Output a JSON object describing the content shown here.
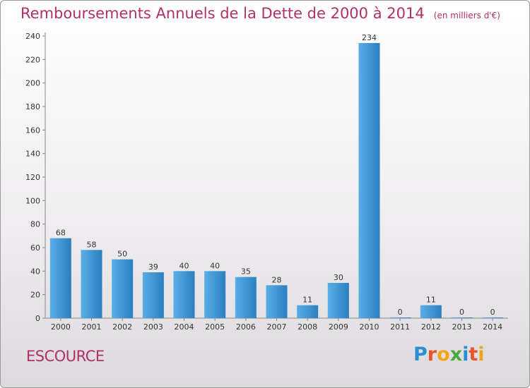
{
  "header": {
    "title": "Remboursements Annuels de la Dette de 2000 à 2014",
    "units": "(en milliers d'€)"
  },
  "commune": "ESCOURCE",
  "logo": {
    "text": "Proxiti",
    "letters": [
      {
        "char": "P",
        "color": "#2a8fd0"
      },
      {
        "char": "r",
        "color": "#e8542b"
      },
      {
        "char": "o",
        "color": "#f2a516"
      },
      {
        "char": "x",
        "color": "#4aa843"
      },
      {
        "char": "i",
        "color": "#2a8fd0"
      },
      {
        "char": "t",
        "color": "#e8542b"
      },
      {
        "char": "i",
        "color": "#f2a516"
      }
    ]
  },
  "colors": {
    "title": "#b0306a",
    "bar_light": "#5aaee6",
    "bar_dark": "#2a7fc0"
  },
  "chart_data": {
    "type": "bar",
    "title": "Remboursements Annuels de la Dette de 2000 à 2014",
    "units": "(en milliers d'€)",
    "categories": [
      "2000",
      "2001",
      "2002",
      "2003",
      "2004",
      "2005",
      "2006",
      "2007",
      "2008",
      "2009",
      "2010",
      "2011",
      "2012",
      "2013",
      "2014"
    ],
    "values": [
      68,
      58,
      50,
      39,
      40,
      40,
      35,
      28,
      11,
      30,
      234,
      0,
      11,
      0,
      0
    ],
    "ylim": [
      0,
      240
    ],
    "yticks": [
      0,
      20,
      40,
      60,
      80,
      100,
      120,
      140,
      160,
      180,
      200,
      220,
      240
    ],
    "grid": false,
    "legend": "none"
  }
}
